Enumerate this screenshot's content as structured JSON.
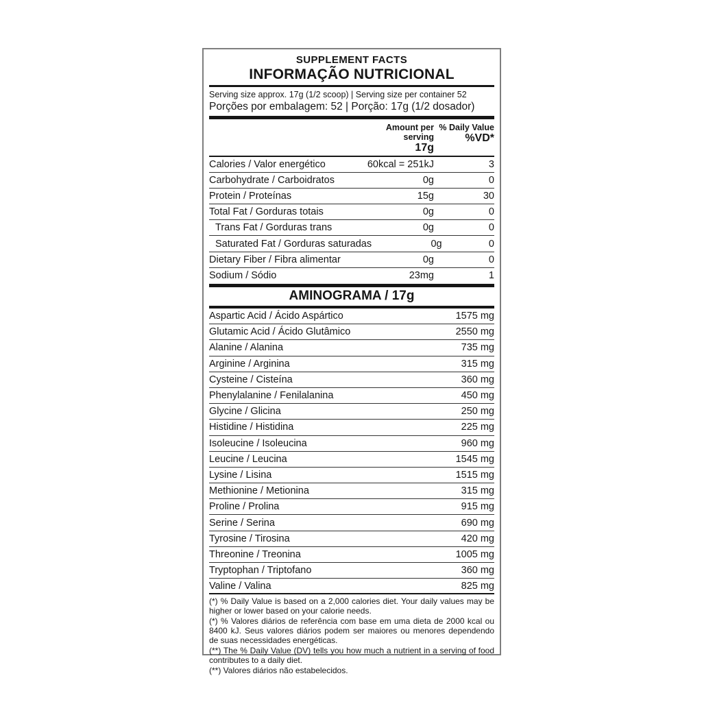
{
  "header": {
    "title_en": "SUPPLEMENT FACTS",
    "title_pt": "INFORMAÇÃO NUTRICIONAL",
    "serving_line_en": "Serving size approx. 17g (1/2 scoop) | Serving size per container 52",
    "serving_line_pt": "Porções por embalagem: 52 | Porção: 17g (1/2 dosador)"
  },
  "columns": {
    "amount_label": "Amount per serving",
    "amount_sub": "17g",
    "dv_label": "% Daily Value",
    "dv_sub": "%VD*"
  },
  "nutrients": [
    {
      "label": "Calories / Valor energético",
      "amount": "60kcal = 251kJ",
      "dv": "3",
      "indent": false
    },
    {
      "label": "Carbohydrate / Carboidratos",
      "amount": "0g",
      "dv": "0",
      "indent": false
    },
    {
      "label": "Protein / Proteínas",
      "amount": "15g",
      "dv": "30",
      "indent": false
    },
    {
      "label": "Total Fat / Gorduras totais",
      "amount": "0g",
      "dv": "0",
      "indent": false
    },
    {
      "label": "Trans Fat / Gorduras trans",
      "amount": "0g",
      "dv": "0",
      "indent": true
    },
    {
      "label": "Saturated Fat / Gorduras saturadas",
      "amount": "0g",
      "dv": "0",
      "indent": true
    },
    {
      "label": "Dietary Fiber / Fibra alimentar",
      "amount": "0g",
      "dv": "0",
      "indent": false
    },
    {
      "label": "Sodium / Sódio",
      "amount": "23mg",
      "dv": "1",
      "indent": false
    }
  ],
  "amino_section": {
    "title": "AMINOGRAMA / 17g",
    "rows": [
      {
        "label": "Aspartic Acid / Ácido Aspártico",
        "value": "1575 mg"
      },
      {
        "label": "Glutamic Acid / Ácido Glutâmico",
        "value": "2550 mg"
      },
      {
        "label": "Alanine / Alanina",
        "value": "735 mg"
      },
      {
        "label": "Arginine / Arginina",
        "value": "315 mg"
      },
      {
        "label": "Cysteine / Cisteína",
        "value": "360 mg"
      },
      {
        "label": "Phenylalanine / Fenilalanina",
        "value": "450 mg"
      },
      {
        "label": "Glycine / Glicina",
        "value": "250 mg"
      },
      {
        "label": "Histidine / Histidina",
        "value": "225 mg"
      },
      {
        "label": "Isoleucine / Isoleucina",
        "value": "960 mg"
      },
      {
        "label": "Leucine / Leucina",
        "value": "1545 mg"
      },
      {
        "label": "Lysine / Lisina",
        "value": "1515 mg"
      },
      {
        "label": "Methionine / Metionina",
        "value": "315 mg"
      },
      {
        "label": "Proline / Prolina",
        "value": "915 mg"
      },
      {
        "label": "Serine / Serina",
        "value": "690 mg"
      },
      {
        "label": "Tyrosine / Tirosina",
        "value": "420 mg"
      },
      {
        "label": "Threonine / Treonina",
        "value": "1005 mg"
      },
      {
        "label": "Tryptophan / Triptofano",
        "value": "360 mg"
      },
      {
        "label": "Valine / Valina",
        "value": "825 mg"
      }
    ]
  },
  "footnotes": [
    "(*) % Daily Value is based on a 2,000 calories diet. Your daily values may be higher or lower based on your calorie needs.",
    "(*) % Valores diários de referência com base em uma dieta de 2000 kcal ou 8400 kJ. Seus valores diários podem ser maiores ou menores dependendo de suas necessidades energéticas.",
    "(**) The % Daily Value (DV) tells you how much a nutrient in a serving of food contributes to a daily diet.",
    "(**) Valores diários não estabelecidos."
  ]
}
